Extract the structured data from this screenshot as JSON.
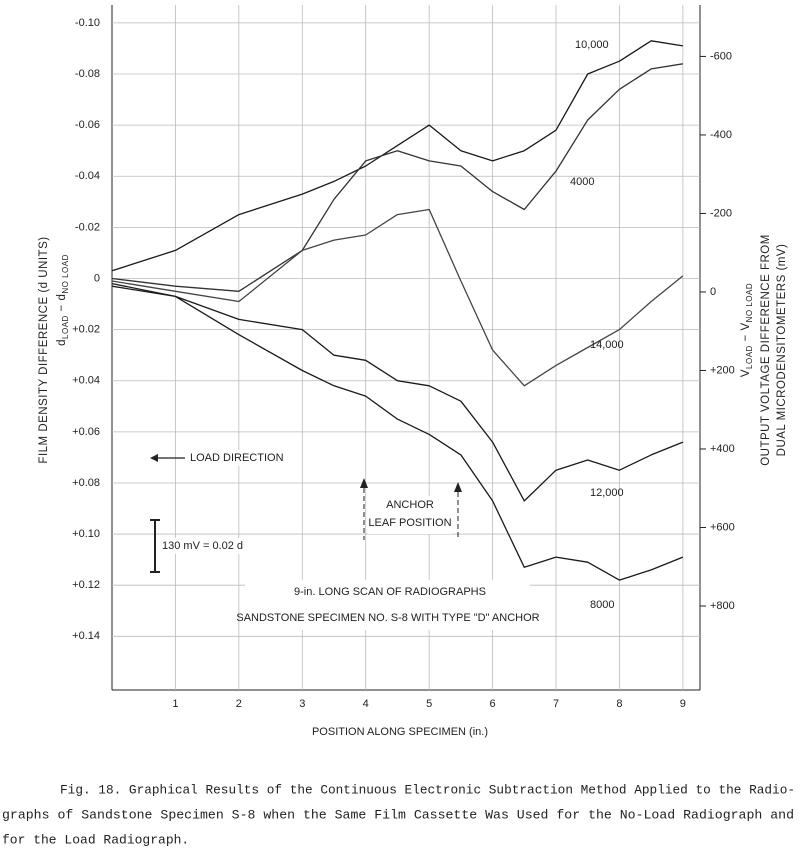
{
  "chart_data": {
    "type": "line",
    "y_label": "FILM DENSITY DIFFERENCE (d UNITS)",
    "y_formula": [
      "d",
      "LOAD",
      " − d",
      "NO LOAD"
    ],
    "y2_label": [
      "OUTPUT VOLTAGE DIFFERENCE FROM",
      "DUAL MICRODENSITOMETERS (mV)"
    ],
    "y2_formula": [
      "V",
      "LOAD",
      " − V",
      "NO LOAD"
    ],
    "x_label": "POSITION ALONG SPECIMEN (in.)",
    "load_direction": "LOAD DIRECTION",
    "anchor_label": [
      "ANCHOR",
      "LEAF POSITION"
    ],
    "scale_note": "130 mV = 0.02 d",
    "scan_note": [
      "9-in. LONG SCAN OF RADIOGRAPHS",
      "SANDSTONE SPECIMEN NO. S-8 WITH TYPE \"D\" ANCHOR"
    ],
    "caption": [
      "Fig. 18.  Graphical Results of the Continuous Electronic Subtraction Method Applied to the Radio-",
      "graphs of Sandstone Specimen S-8 when the Same Film Cassette Was Used for the No-Load Radiograph and",
      "for the Load Radiograph."
    ],
    "x": [
      0,
      1,
      2,
      3,
      3.5,
      4,
      4.5,
      5,
      5.5,
      6,
      6.5,
      7,
      7.5,
      8,
      8.5,
      9
    ],
    "xlim": [
      0,
      9.27
    ],
    "xticks": [
      1,
      2,
      3,
      4,
      5,
      6,
      7,
      8,
      9
    ],
    "ylim": [
      0.161,
      -0.107
    ],
    "yticks": [
      {
        "value": -0.1,
        "label": "-0.10"
      },
      {
        "value": -0.08,
        "label": "-0.08"
      },
      {
        "value": -0.06,
        "label": "-0.06"
      },
      {
        "value": -0.04,
        "label": "-0.04"
      },
      {
        "value": -0.02,
        "label": "-0.02"
      },
      0,
      {
        "value": 0.02,
        "label": "+0.02"
      },
      {
        "value": 0.04,
        "label": "+0.04"
      },
      {
        "value": 0.06,
        "label": "+0.06"
      },
      {
        "value": 0.08,
        "label": "+0.08"
      },
      {
        "value": 0.1,
        "label": "+0.10"
      },
      {
        "value": 0.12,
        "label": "+0.12"
      },
      {
        "value": 0.14,
        "label": "+0.14"
      }
    ],
    "y2lim": [
      1014,
      -731
    ],
    "y2ticks": [
      -600,
      -400,
      -200,
      0,
      {
        "value": 200,
        "label": "+200"
      },
      {
        "value": 400,
        "label": "+400"
      },
      {
        "value": 600,
        "label": "+600"
      },
      {
        "value": 800,
        "label": "+800"
      }
    ],
    "grid": true,
    "series": [
      {
        "name": "10,000",
        "color": "#1a1a1a",
        "values": [
          -0.003,
          -0.011,
          -0.025,
          -0.033,
          -0.038,
          -0.044,
          -0.052,
          -0.06,
          -0.05,
          -0.046,
          -0.05,
          -0.058,
          -0.08,
          -0.085,
          -0.093,
          -0.091
        ]
      },
      {
        "name": "4000",
        "color": "#333333",
        "values": [
          0,
          0.003,
          0.005,
          -0.011,
          -0.031,
          -0.046,
          -0.05,
          -0.046,
          -0.044,
          -0.034,
          -0.027,
          -0.042,
          -0.062,
          -0.074,
          -0.082,
          -0.084
        ]
      },
      {
        "name": "14,000",
        "color": "#444444",
        "values": [
          0.001,
          0.005,
          0.009,
          -0.011,
          -0.015,
          -0.017,
          -0.025,
          -0.027,
          0.001,
          0.028,
          0.042,
          0.034,
          0.027,
          0.02,
          0.009,
          -0.001
        ]
      },
      {
        "name": "12,000",
        "color": "#1a1a1a",
        "values": [
          0.002,
          0.007,
          0.016,
          0.02,
          0.03,
          0.032,
          0.04,
          0.042,
          0.048,
          0.064,
          0.087,
          0.075,
          0.071,
          0.075,
          0.069,
          0.064
        ]
      },
      {
        "name": "8000",
        "color": "#1a1a1a",
        "values": [
          0.003,
          0.007,
          0.022,
          0.036,
          0.042,
          0.046,
          0.055,
          0.061,
          0.069,
          0.087,
          0.113,
          0.109,
          0.111,
          0.118,
          0.114,
          0.109
        ]
      }
    ]
  }
}
